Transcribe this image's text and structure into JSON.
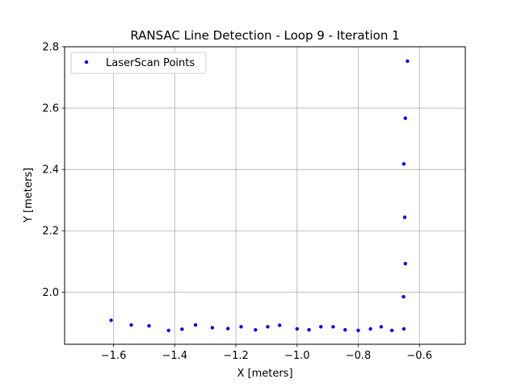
{
  "chart_data": {
    "type": "scatter",
    "title": "RANSAC Line Detection - Loop 9 - Iteration 1",
    "xlabel": "X [meters]",
    "ylabel": "Y [meters]",
    "xlim": [
      -1.76,
      -0.45
    ],
    "ylim": [
      1.83,
      2.8
    ],
    "xticks": [
      -1.6,
      -1.4,
      -1.2,
      -1.0,
      -0.8,
      -0.6
    ],
    "xtick_labels": [
      "−1.6",
      "−1.4",
      "−1.2",
      "−1.0",
      "−0.8",
      "−0.6"
    ],
    "yticks": [
      2.0,
      2.2,
      2.4,
      2.6,
      2.8
    ],
    "ytick_labels": [
      "2.0",
      "2.2",
      "2.4",
      "2.6",
      "2.8"
    ],
    "grid": true,
    "legend_position": "top-left",
    "series": [
      {
        "name": "LaserScan Points",
        "color": "#0000ff",
        "points": [
          [
            -1.608,
            1.908
          ],
          [
            -1.542,
            1.893
          ],
          [
            -1.484,
            1.89
          ],
          [
            -1.42,
            1.875
          ],
          [
            -1.376,
            1.879
          ],
          [
            -1.332,
            1.893
          ],
          [
            -1.277,
            1.884
          ],
          [
            -1.226,
            1.881
          ],
          [
            -1.183,
            1.887
          ],
          [
            -1.136,
            1.877
          ],
          [
            -1.096,
            1.887
          ],
          [
            -1.057,
            1.892
          ],
          [
            -1.0,
            1.88
          ],
          [
            -0.961,
            1.877
          ],
          [
            -0.922,
            1.887
          ],
          [
            -0.882,
            1.887
          ],
          [
            -0.843,
            1.877
          ],
          [
            -0.8,
            1.875
          ],
          [
            -0.76,
            1.88
          ],
          [
            -0.725,
            1.887
          ],
          [
            -0.69,
            1.875
          ],
          [
            -0.651,
            1.88
          ],
          [
            -0.652,
            1.985
          ],
          [
            -0.646,
            2.093
          ],
          [
            -0.648,
            2.244
          ],
          [
            -0.651,
            2.418
          ],
          [
            -0.646,
            2.567
          ],
          [
            -0.639,
            2.753
          ]
        ]
      }
    ]
  }
}
